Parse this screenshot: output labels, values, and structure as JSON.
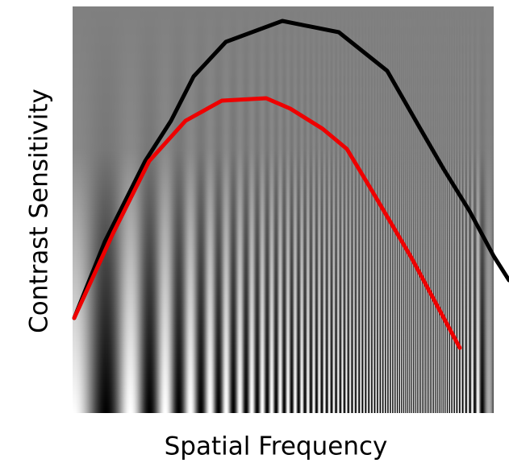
{
  "axes": {
    "y_label": "Contrast Sensitivity",
    "x_label": "Spatial Frequency"
  }
}
